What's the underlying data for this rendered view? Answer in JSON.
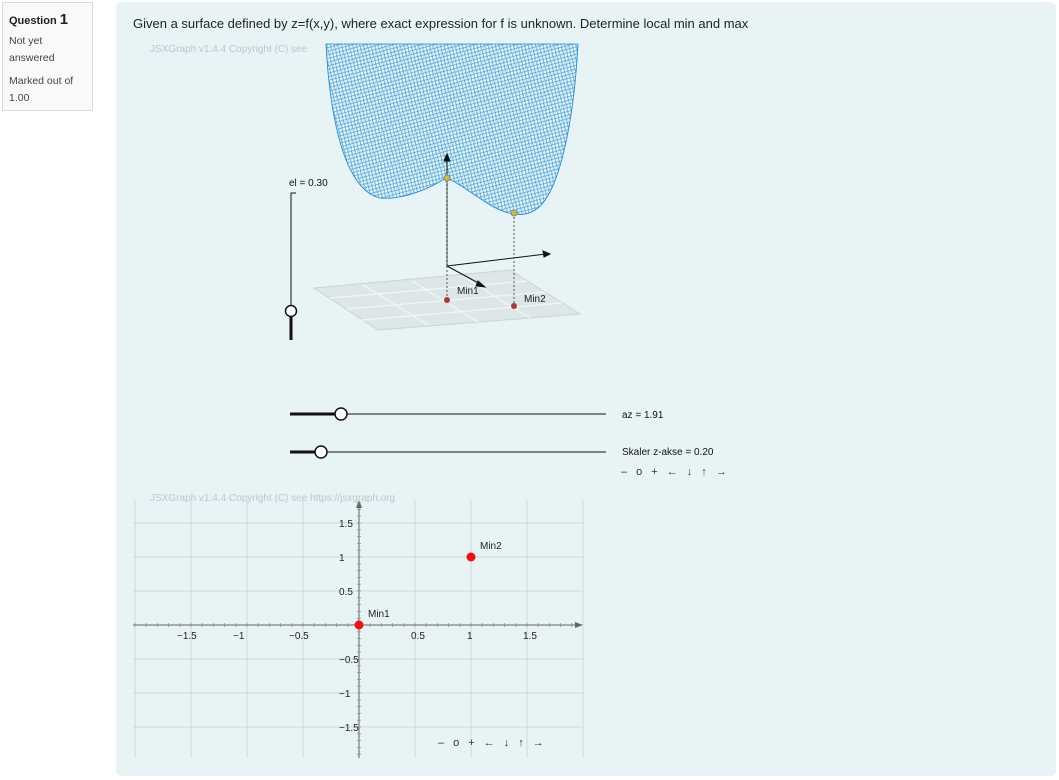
{
  "question": {
    "label": "Question",
    "number": "1",
    "state": "Not yet answered",
    "grade": "Marked out of 1.00",
    "text": "Given a surface defined by z=f(x,y), where exact expression for f is unknown. Determine local min and max"
  },
  "board3d": {
    "copyright": "JSXGraph v1.4.4 Copyright (C) see",
    "el_label": "el = 0.30",
    "point_labels": [
      "Min1",
      "Min2"
    ],
    "az_label": "az = 1.91",
    "scale_label": "Skaler z-akse = 0.20",
    "nav": [
      "–",
      "o",
      "+",
      "←",
      "↓",
      "↑",
      "→"
    ]
  },
  "board2d": {
    "copyright": "JSXGraph v1.4.4 Copyright (C) see https://jsxgraph.org",
    "x_ticks": [
      "-1.5",
      "-1",
      "-0.5",
      "0.5",
      "1",
      "1.5"
    ],
    "y_ticks": [
      "1.5",
      "1",
      "0.5",
      "-0.5",
      "-1",
      "-1.5"
    ],
    "points": [
      {
        "name": "Min1",
        "x": 0,
        "y": 0
      },
      {
        "name": "Min2",
        "x": 1,
        "y": 1
      }
    ],
    "nav": [
      "–",
      "o",
      "+",
      "←",
      "↓",
      "↑",
      "→"
    ]
  },
  "colors": {
    "surface": "#1f8fd0",
    "point": "#ee1111",
    "background": "#e7f3f5"
  }
}
